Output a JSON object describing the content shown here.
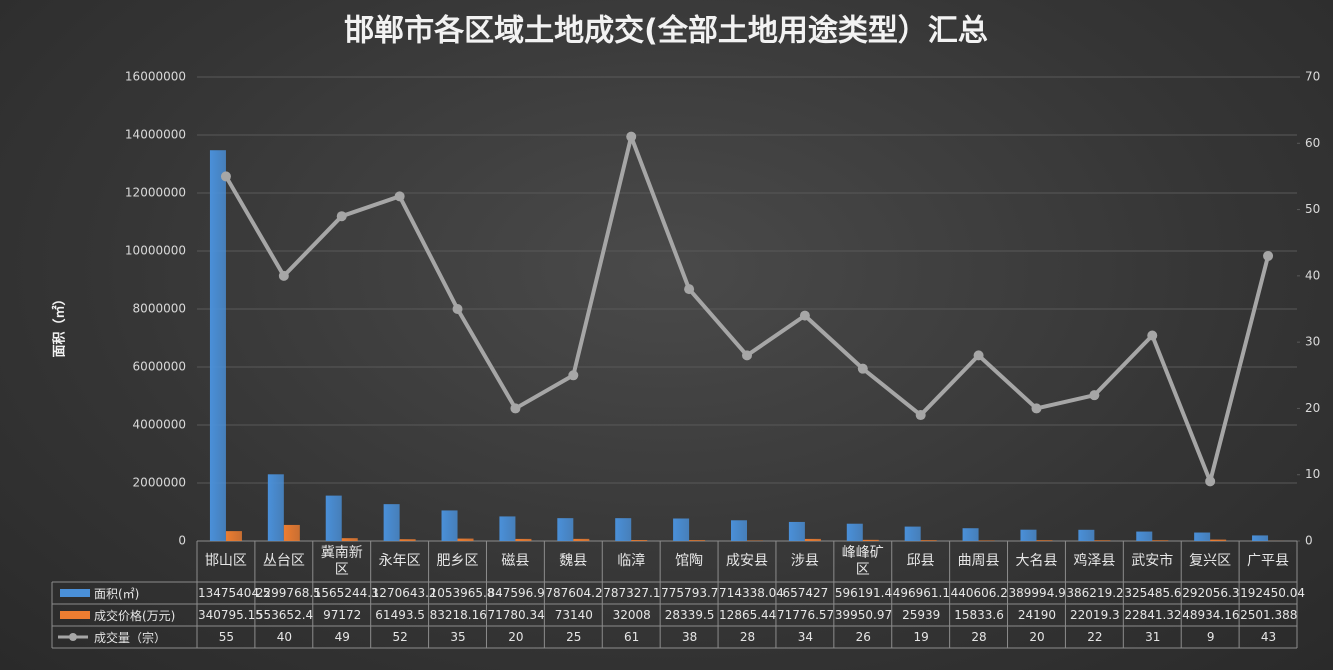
{
  "chart_data": {
    "type": "bar_line_table",
    "title": "邯郸市各区域土地成交(全部土地用途类型）汇总",
    "y_label": "面积（㎡）",
    "categories": [
      "邯山区",
      "丛台区",
      "冀南新区",
      "永年区",
      "肥乡区",
      "磁县",
      "魏县",
      "临漳",
      "馆陶",
      "成安县",
      "涉县",
      "峰峰矿区",
      "邱县",
      "曲周县",
      "大名县",
      "鸡泽县",
      "武安市",
      "复兴区",
      "广平县"
    ],
    "series": [
      {
        "name": "面积(㎡)",
        "color": "#4a90d9",
        "kind": "bar",
        "values": [
          13475404.5,
          2299768.5,
          1565244.3,
          1270643.2,
          1053965.8,
          847596.9,
          787604.2,
          787327.1,
          775793.7,
          714338.04,
          657427,
          596191.4,
          496961.1,
          440606.2,
          389994.9,
          386219.2,
          325485.6,
          292056.3,
          192450.04
        ]
      },
      {
        "name": "成交价格(万元)",
        "color": "#ed7d31",
        "kind": "bar",
        "values": [
          340795.15,
          553652.4,
          97172,
          61493.5,
          83218.16,
          71780.34,
          73140,
          32008,
          28339.5,
          12865.44,
          71776.57,
          39950.97,
          25939,
          15833.6,
          24190,
          22019.3,
          22841.32,
          48934.16,
          2501.388
        ]
      },
      {
        "name": "成交量（宗）",
        "color": "#a6a6a6",
        "kind": "line",
        "axis": "y2",
        "values": [
          55,
          40,
          49,
          52,
          35,
          20,
          25,
          61,
          38,
          28,
          34,
          26,
          19,
          28,
          20,
          22,
          31,
          9,
          43
        ]
      }
    ],
    "ylim": [
      0,
      16000000
    ],
    "yticks": [
      0,
      2000000,
      4000000,
      6000000,
      8000000,
      10000000,
      12000000,
      14000000,
      16000000
    ],
    "y2lim": [
      0,
      70
    ],
    "y2ticks": [
      0,
      10,
      20,
      30,
      40,
      50,
      60,
      70
    ],
    "grid": true
  }
}
